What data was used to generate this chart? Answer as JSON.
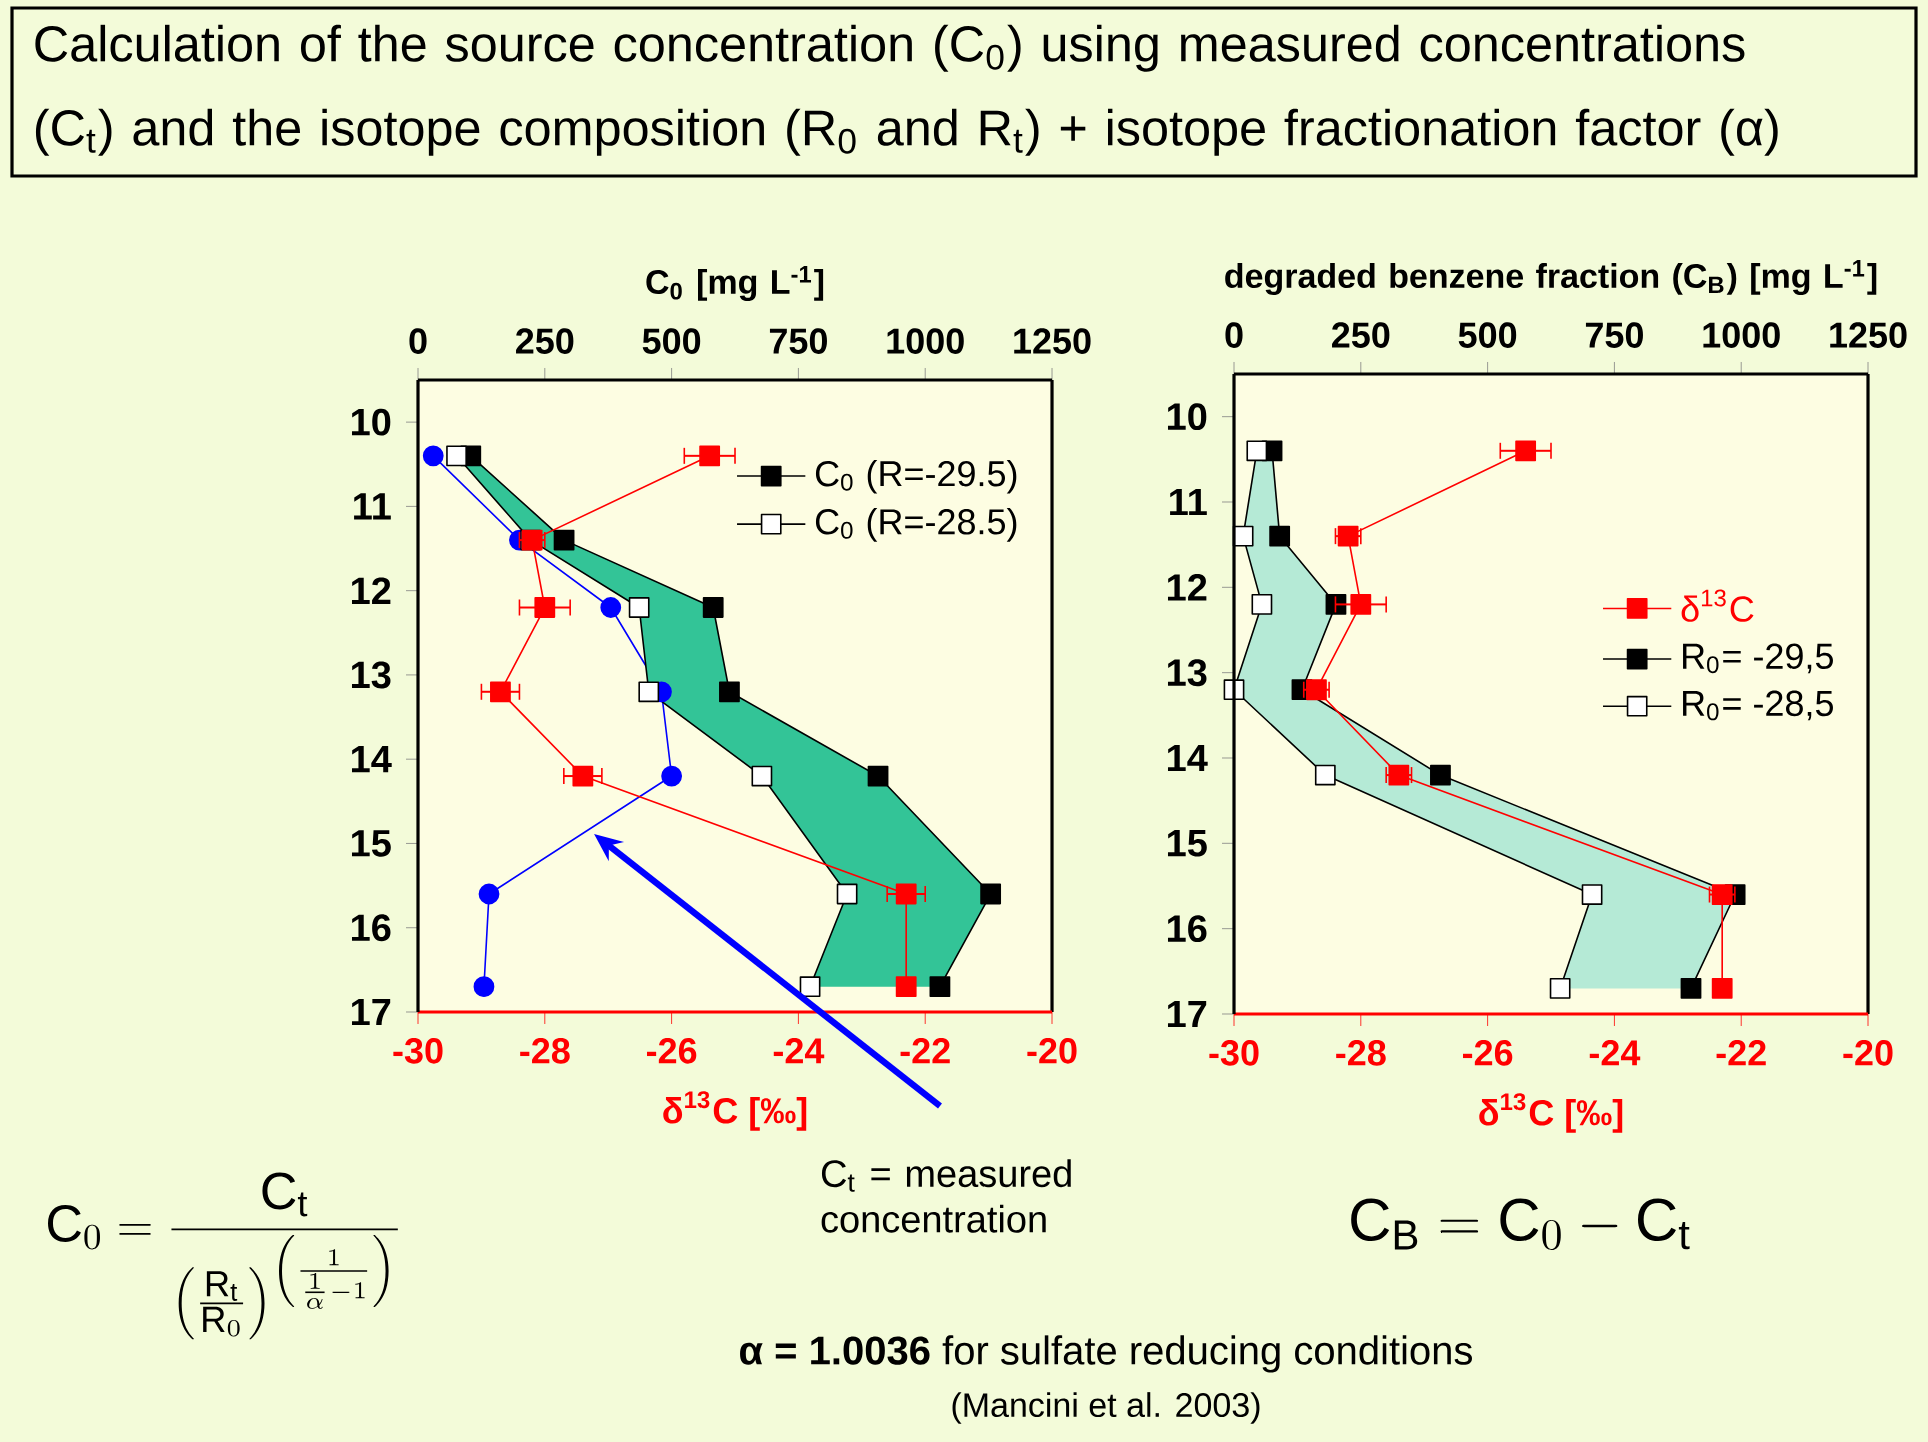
{
  "chart_data": [
    {
      "type": "line",
      "orientation": "horizontal",
      "title": "Calculation of the source concentration (C$_{0}$) using measured concentrations (C$_{t}$) and the isotope composition (R$_{0}$ and R$_{t}$) + isotope fractionation factor (α)",
      "xlabel": "δ$^{13}$C [‰]",
      "x2label": "C$_{0}$ [mg L$^{-1}$]",
      "x": [
        10.4,
        11.4,
        12.2,
        13.2,
        14.2,
        15.6,
        16.7
      ],
      "xlim": [
        -30,
        -20
      ],
      "xticks": [
        -30,
        -28,
        -26,
        -24,
        -22,
        -20
      ],
      "x2lim": [
        0,
        1250
      ],
      "x2ticks": [
        0,
        250,
        500,
        750,
        1000,
        1250
      ],
      "ylim": [
        17,
        9.5
      ],
      "yticks": [
        10,
        11,
        12,
        13,
        14,
        15,
        16,
        17
      ],
      "legend": "top right",
      "line_style": "solid",
      "series": [
        {
          "color": "#ff0000",
          "marker": "square",
          "values": [
            -25.4,
            -28.2,
            -28.0,
            -28.7,
            -27.4,
            -22.3,
            -22.3
          ],
          "errors": [
            0.4,
            0.2,
            0.4,
            0.3,
            0.3,
            0.3,
            null
          ]
        },
        {
          "axis": "x2",
          "color": "#0000ff",
          "marker": "circle",
          "values": [
            30,
            200,
            380,
            480,
            500,
            140,
            130
          ]
        },
        {
          "name": "C$_{0}$ (R=-29.5)",
          "axis": "x2",
          "color": "#000000",
          "marker": "square",
          "values": [
            104,
            288,
            582,
            614,
            907,
            1129,
            1029
          ],
          "lower": [
            76,
            222,
            436,
            455,
            678,
            846,
            773
          ],
          "upper": [
            104,
            288,
            582,
            614,
            907,
            1129,
            1029
          ]
        },
        {
          "name": "C$_{0}$ (R=-28.5)",
          "axis": "x2",
          "color": "#000000",
          "marker": "square",
          "colors": [
            "#ffffff",
            "#ffffff",
            "#ffffff",
            "#ffffff",
            "#ffffff",
            "#ffffff",
            "#ffffff"
          ],
          "values": [
            76,
            222,
            436,
            455,
            678,
            846,
            773
          ]
        }
      ],
      "annotations": [
        "\\mathrm{C}_{0}=\\frac{\\mathrm{C}_{\\mathrm{t}}}{\\left(\\frac{\\mathrm{R}_{\\mathrm{t}}}{\\mathrm{R}_{0}}\\right)^{\\left(\\frac{1}{\\frac{1}{\\alpha}-1}\\right)}}",
        "C$_{t}$ = measured concentration"
      ]
    },
    {
      "type": "line",
      "orientation": "horizontal",
      "xlabel": "δ$^{13}$C [‰]",
      "x2label": "degraded benzene fraction (C$_{B}$) [mg L$^{-1}$]",
      "x": [
        10.4,
        11.4,
        12.2,
        13.2,
        14.2,
        15.6,
        16.7
      ],
      "xlim": [
        -30,
        -20
      ],
      "xticks": [
        -30,
        -28,
        -26,
        -24,
        -22,
        -20
      ],
      "x2lim": [
        0,
        1250
      ],
      "x2ticks": [
        0,
        250,
        500,
        750,
        1000,
        1250
      ],
      "ylim": [
        17,
        9.5
      ],
      "yticks": [
        10,
        11,
        12,
        13,
        14,
        15,
        16,
        17
      ],
      "legend": "right",
      "line_style": "solid",
      "series": [
        {
          "name": "δ$^{13}$C",
          "color": "#ff0000",
          "marker": "square",
          "values": [
            -25.4,
            -28.2,
            -28.0,
            -28.7,
            -27.4,
            -22.3,
            -22.3
          ],
          "errors": [
            0.4,
            0.2,
            0.4,
            0.2,
            0.2,
            0.2,
            null
          ]
        },
        {
          "name": "R$_{0}$= -29,5",
          "axis": "x2",
          "color": "#000000",
          "marker": "square",
          "values": [
            75,
            90,
            201,
            134,
            407,
            988,
            901
          ],
          "lower": [
            45,
            18,
            55,
            0,
            180,
            706,
            643
          ],
          "upper": [
            75,
            90,
            201,
            134,
            407,
            988,
            901
          ]
        },
        {
          "name": "R$_{0}$= -28,5",
          "axis": "x2",
          "color": "#000000",
          "marker": "square",
          "colors": [
            "#ffffff",
            "#ffffff",
            "#ffffff",
            "#ffffff",
            "#ffffff",
            "#ffffff",
            "#ffffff"
          ],
          "values": [
            45,
            18,
            55,
            0,
            180,
            706,
            643
          ]
        }
      ],
      "annotations": [
        "\\mathrm{C}_{\\mathrm{B}}=\\mathrm{C}_{0}-\\mathrm{C}_{\\mathrm{t}}",
        "**α = 1.0036** for sulfate reducing conditions",
        "(Mancini et al. 2003)"
      ]
    }
  ]
}
